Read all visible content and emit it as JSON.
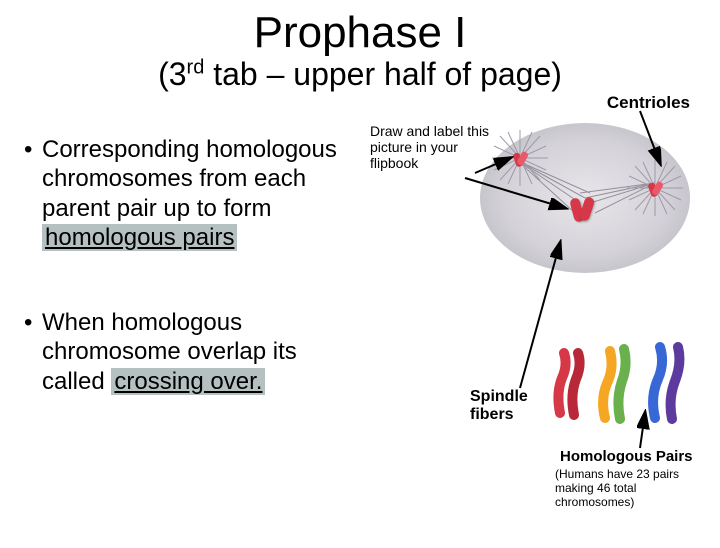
{
  "title": "Prophase I",
  "subtitle_pre": "(3",
  "subtitle_sup": "rd",
  "subtitle_post": " tab – upper half of page)",
  "bullets": [
    {
      "pre": "Corresponding homologous chromosomes from each parent pair up to form ",
      "hl": "homologous pairs"
    },
    {
      "pre": "When homologous chromosome overlap its called ",
      "hl": "crossing over."
    }
  ],
  "labels": {
    "centrioles": "Centrioles",
    "instruction": "Draw and label this picture in your flipbook",
    "spindle": "Spindle fibers",
    "hompairs": "Homologous Pairs",
    "hompairs_note": "(Humans have 23 pairs making 46 total chromosomes)"
  },
  "colors": {
    "chrom_red": "#d63848",
    "chrom_orange": "#f5a623",
    "chrom_green": "#6ab04c",
    "chrom_blue": "#3867d6",
    "chrom_purple": "#5d3b9e",
    "cell_bg": "#d4d2d8",
    "spindle": "#878290",
    "centriole": "#d63848",
    "highlight_box": "rgba(120,140,140,0.55)"
  }
}
